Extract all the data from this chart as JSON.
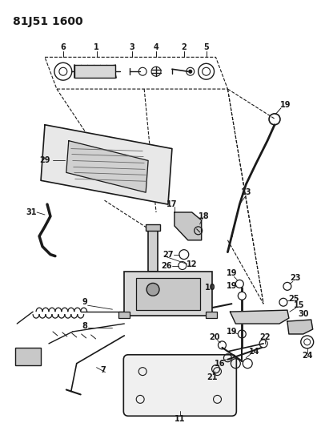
{
  "title": "81J51 1600",
  "bg_color": "#ffffff",
  "line_color": "#1a1a1a",
  "fig_width": 4.02,
  "fig_height": 5.33,
  "dpi": 100
}
